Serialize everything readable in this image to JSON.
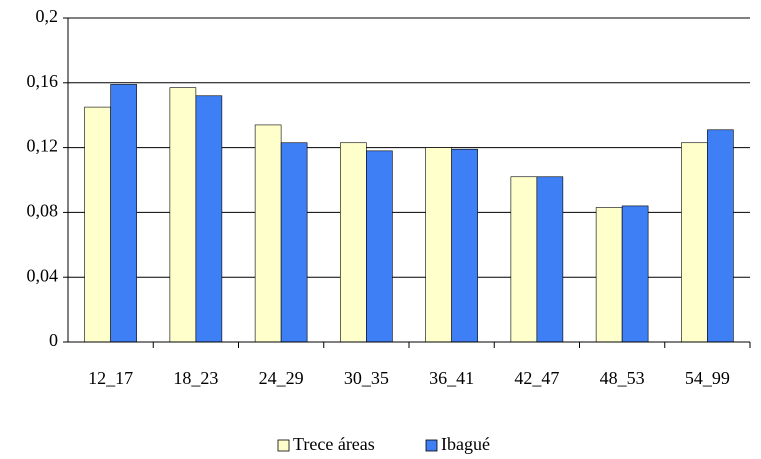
{
  "chart_data": {
    "type": "bar",
    "categories": [
      "12_17",
      "18_23",
      "24_29",
      "30_35",
      "36_41",
      "42_47",
      "48_53",
      "54_99"
    ],
    "series": [
      {
        "name": "Trece áreas",
        "color": "#ffffcc",
        "values": [
          0.145,
          0.157,
          0.134,
          0.123,
          0.12,
          0.102,
          0.083,
          0.123
        ]
      },
      {
        "name": "Ibagué",
        "color": "#3f7ff5",
        "values": [
          0.159,
          0.152,
          0.123,
          0.118,
          0.119,
          0.102,
          0.084,
          0.131
        ]
      }
    ],
    "ylim": [
      0,
      0.2
    ],
    "yticks": [
      0,
      {
        "value": 0.04,
        "label": "0,04"
      },
      {
        "value": 0.08,
        "label": "0,08"
      },
      {
        "value": 0.12,
        "label": "0,12"
      },
      {
        "value": 0.16,
        "label": "0,16"
      },
      {
        "value": 0.2,
        "label": "0,2"
      }
    ],
    "grid": true
  }
}
